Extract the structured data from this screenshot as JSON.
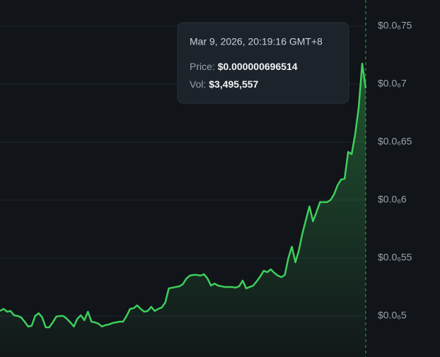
{
  "chart_data": {
    "type": "line",
    "color": "#3ecf5c",
    "grid": true,
    "ylim": [
      4.646e-07,
      7.7256e-07
    ],
    "yticks": [
      {
        "value": 7.5e-07,
        "label": "$0.0₆75"
      },
      {
        "value": 7e-07,
        "label": "$0.0₆7"
      },
      {
        "value": 6.5e-07,
        "label": "$0.0₆65"
      },
      {
        "value": 6e-07,
        "label": "$0.0₆6"
      },
      {
        "value": 5.5e-07,
        "label": "$0.0₆55"
      },
      {
        "value": 5e-07,
        "label": "$0.0₆5"
      }
    ],
    "values": [
      5.043e-07,
      5.061e-07,
      5.037e-07,
      5.043e-07,
      5.006e-07,
      5e-07,
      4.988e-07,
      4.951e-07,
      4.909e-07,
      4.915e-07,
      5e-07,
      5.024e-07,
      4.988e-07,
      4.902e-07,
      4.902e-07,
      4.945e-07,
      4.994e-07,
      5e-07,
      5e-07,
      4.976e-07,
      4.945e-07,
      4.909e-07,
      4.976e-07,
      5.006e-07,
      4.963e-07,
      5.037e-07,
      4.951e-07,
      4.945e-07,
      4.933e-07,
      4.909e-07,
      4.921e-07,
      4.927e-07,
      4.939e-07,
      4.945e-07,
      4.951e-07,
      4.951e-07,
      5e-07,
      5.061e-07,
      5.067e-07,
      5.091e-07,
      5.061e-07,
      5.037e-07,
      5.043e-07,
      5.079e-07,
      5.043e-07,
      5.061e-07,
      5.073e-07,
      5.116e-07,
      5.238e-07,
      5.244e-07,
      5.25e-07,
      5.256e-07,
      5.274e-07,
      5.323e-07,
      5.348e-07,
      5.354e-07,
      5.354e-07,
      5.348e-07,
      5.36e-07,
      5.323e-07,
      5.262e-07,
      5.28e-07,
      5.262e-07,
      5.256e-07,
      5.25e-07,
      5.25e-07,
      5.25e-07,
      5.244e-07,
      5.256e-07,
      5.305e-07,
      5.238e-07,
      5.25e-07,
      5.262e-07,
      5.299e-07,
      5.341e-07,
      5.39e-07,
      5.378e-07,
      5.402e-07,
      5.372e-07,
      5.348e-07,
      5.335e-07,
      5.354e-07,
      5.5e-07,
      5.598e-07,
      5.463e-07,
      5.567e-07,
      5.713e-07,
      5.829e-07,
      5.945e-07,
      5.817e-07,
      5.896e-07,
      5.982e-07,
      5.982e-07,
      5.982e-07,
      6e-07,
      6.049e-07,
      6.128e-07,
      6.177e-07,
      6.183e-07,
      6.415e-07,
      6.396e-07,
      6.567e-07,
      6.799e-07,
      7.177e-07,
      6.96514e-07
    ],
    "tooltip": {
      "date": "Mar 9, 2026, 20:19:16 GMT+8",
      "price_label": "Price:",
      "price": "$0.000000696514",
      "vol_label": "Vol:",
      "vol": "$3,495,557"
    }
  }
}
